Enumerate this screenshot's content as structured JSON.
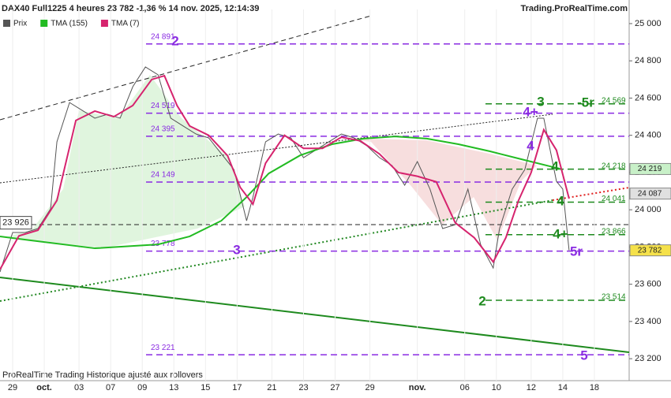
{
  "chart_data": {
    "type": "line",
    "title": "DAX40 Full1225 4 heures 23 782 -1,36 % 14 nov. 2025, 12:14:39",
    "source": "Trading.ProRealTime.com",
    "footer": "ProRealTime Trading  Historique ajusté aux rollovers",
    "xlim": [
      0,
      199
    ],
    "ylim": [
      23082,
      25076
    ],
    "xticks": [
      {
        "value": 4,
        "label": "29"
      },
      {
        "value": 14,
        "label": "oct."
      },
      {
        "value": 25,
        "label": "03"
      },
      {
        "value": 35,
        "label": "07"
      },
      {
        "value": 45,
        "label": "09"
      },
      {
        "value": 55,
        "label": "13"
      },
      {
        "value": 65,
        "label": "15"
      },
      {
        "value": 75,
        "label": "17"
      },
      {
        "value": 86,
        "label": "21"
      },
      {
        "value": 96,
        "label": "23"
      },
      {
        "value": 106,
        "label": "27"
      },
      {
        "value": 117,
        "label": "29"
      },
      {
        "value": 132,
        "label": "nov."
      },
      {
        "value": 147,
        "label": "06"
      },
      {
        "value": 157,
        "label": "10"
      },
      {
        "value": 168,
        "label": "12"
      },
      {
        "value": 178,
        "label": "14"
      },
      {
        "value": 188,
        "label": "18"
      }
    ],
    "yticks": [
      {
        "value": 23200,
        "label": "23 200"
      },
      {
        "value": 23400,
        "label": "23 400"
      },
      {
        "value": 23600,
        "label": "23 600"
      },
      {
        "value": 23800,
        "label": "23 800"
      },
      {
        "value": 24000,
        "label": "24 000"
      },
      {
        "value": 24200,
        "label": "24 200"
      },
      {
        "value": 24400,
        "label": "24 400"
      },
      {
        "value": 24600,
        "label": "24 600"
      },
      {
        "value": 24800,
        "label": "24 800"
      },
      {
        "value": 25000,
        "label": "25 000"
      }
    ],
    "series": [
      {
        "name": "Prix",
        "color": "#555555",
        "x": [
          0,
          4,
          8,
          12,
          16,
          18,
          22,
          26,
          30,
          34,
          38,
          42,
          46,
          50,
          54,
          58,
          62,
          66,
          70,
          74,
          78,
          80,
          84,
          88,
          92,
          96,
          100,
          104,
          108,
          112,
          116,
          120,
          124,
          128,
          132,
          136,
          140,
          144,
          148,
          152,
          156,
          158,
          162,
          166,
          170,
          172,
          174,
          176,
          178,
          180
        ],
        "values": [
          23666,
          23878,
          23878,
          23899,
          24005,
          24365,
          24576,
          24534,
          24492,
          24513,
          24492,
          24661,
          24767,
          24725,
          24492,
          24449,
          24407,
          24386,
          24301,
          24216,
          23941,
          24068,
          24365,
          24407,
          24386,
          24280,
          24322,
          24365,
          24407,
          24386,
          24344,
          24280,
          24238,
          24132,
          24259,
          24111,
          23899,
          23920,
          24111,
          23814,
          23687,
          23899,
          24111,
          24216,
          24492,
          24492,
          24322,
          24153,
          24111,
          23782
        ]
      },
      {
        "name": "TMA (155)",
        "color": "#22bb22",
        "x": [
          0,
          10,
          30,
          50,
          60,
          70,
          78,
          85,
          95,
          105,
          115,
          125,
          135,
          145,
          155,
          165,
          175,
          178
        ],
        "values": [
          23857,
          23835,
          23793,
          23814,
          23857,
          23941,
          24068,
          24195,
          24293,
          24352,
          24382,
          24394,
          24382,
          24352,
          24314,
          24271,
          24229,
          24216
        ]
      },
      {
        "name": "TMA (7)",
        "color": "#d6246e",
        "x": [
          0,
          6,
          12,
          18,
          24,
          30,
          36,
          42,
          48,
          52,
          56,
          60,
          66,
          72,
          76,
          80,
          84,
          90,
          96,
          102,
          108,
          114,
          120,
          126,
          132,
          138,
          144,
          150,
          156,
          160,
          164,
          168,
          172,
          176,
          180
        ],
        "values": [
          23680,
          23860,
          23890,
          24050,
          24480,
          24530,
          24500,
          24560,
          24700,
          24720,
          24560,
          24450,
          24400,
          24290,
          24120,
          24030,
          24250,
          24400,
          24330,
          24330,
          24390,
          24370,
          24300,
          24200,
          24180,
          24150,
          23930,
          23850,
          23720,
          23850,
          24050,
          24200,
          24430,
          24320,
          24060
        ]
      }
    ],
    "purple_levels": [
      {
        "value": 24891,
        "label": "24 891"
      },
      {
        "value": 24519,
        "label": "24 519"
      },
      {
        "value": 24395,
        "label": "24 395"
      },
      {
        "value": 24149,
        "label": "24 149"
      },
      {
        "value": 23778,
        "label": "23 778"
      },
      {
        "value": 23221,
        "label": "23 221"
      }
    ],
    "green_levels": [
      {
        "value": 24569,
        "label": "24 569"
      },
      {
        "value": 24218,
        "label": "24 218"
      },
      {
        "value": 24041,
        "label": "24 041"
      },
      {
        "value": 23866,
        "label": "23 866"
      },
      {
        "value": 23514,
        "label": "23 514"
      }
    ],
    "price_tags": [
      {
        "value": 24219,
        "label": "24 219",
        "color": "#c8f0c8"
      },
      {
        "value": 24087,
        "label": "24 087",
        "color": "#e0e0e0"
      },
      {
        "value": 23782,
        "label": "23 782",
        "color": "#f5e14a"
      }
    ],
    "left_tag": {
      "value": 23926,
      "label": "23 926"
    },
    "annotations": [
      "2",
      "3",
      "4+",
      "3",
      "-5r",
      "4",
      "4",
      "4",
      "4+",
      "5r",
      "2",
      "5"
    ]
  }
}
